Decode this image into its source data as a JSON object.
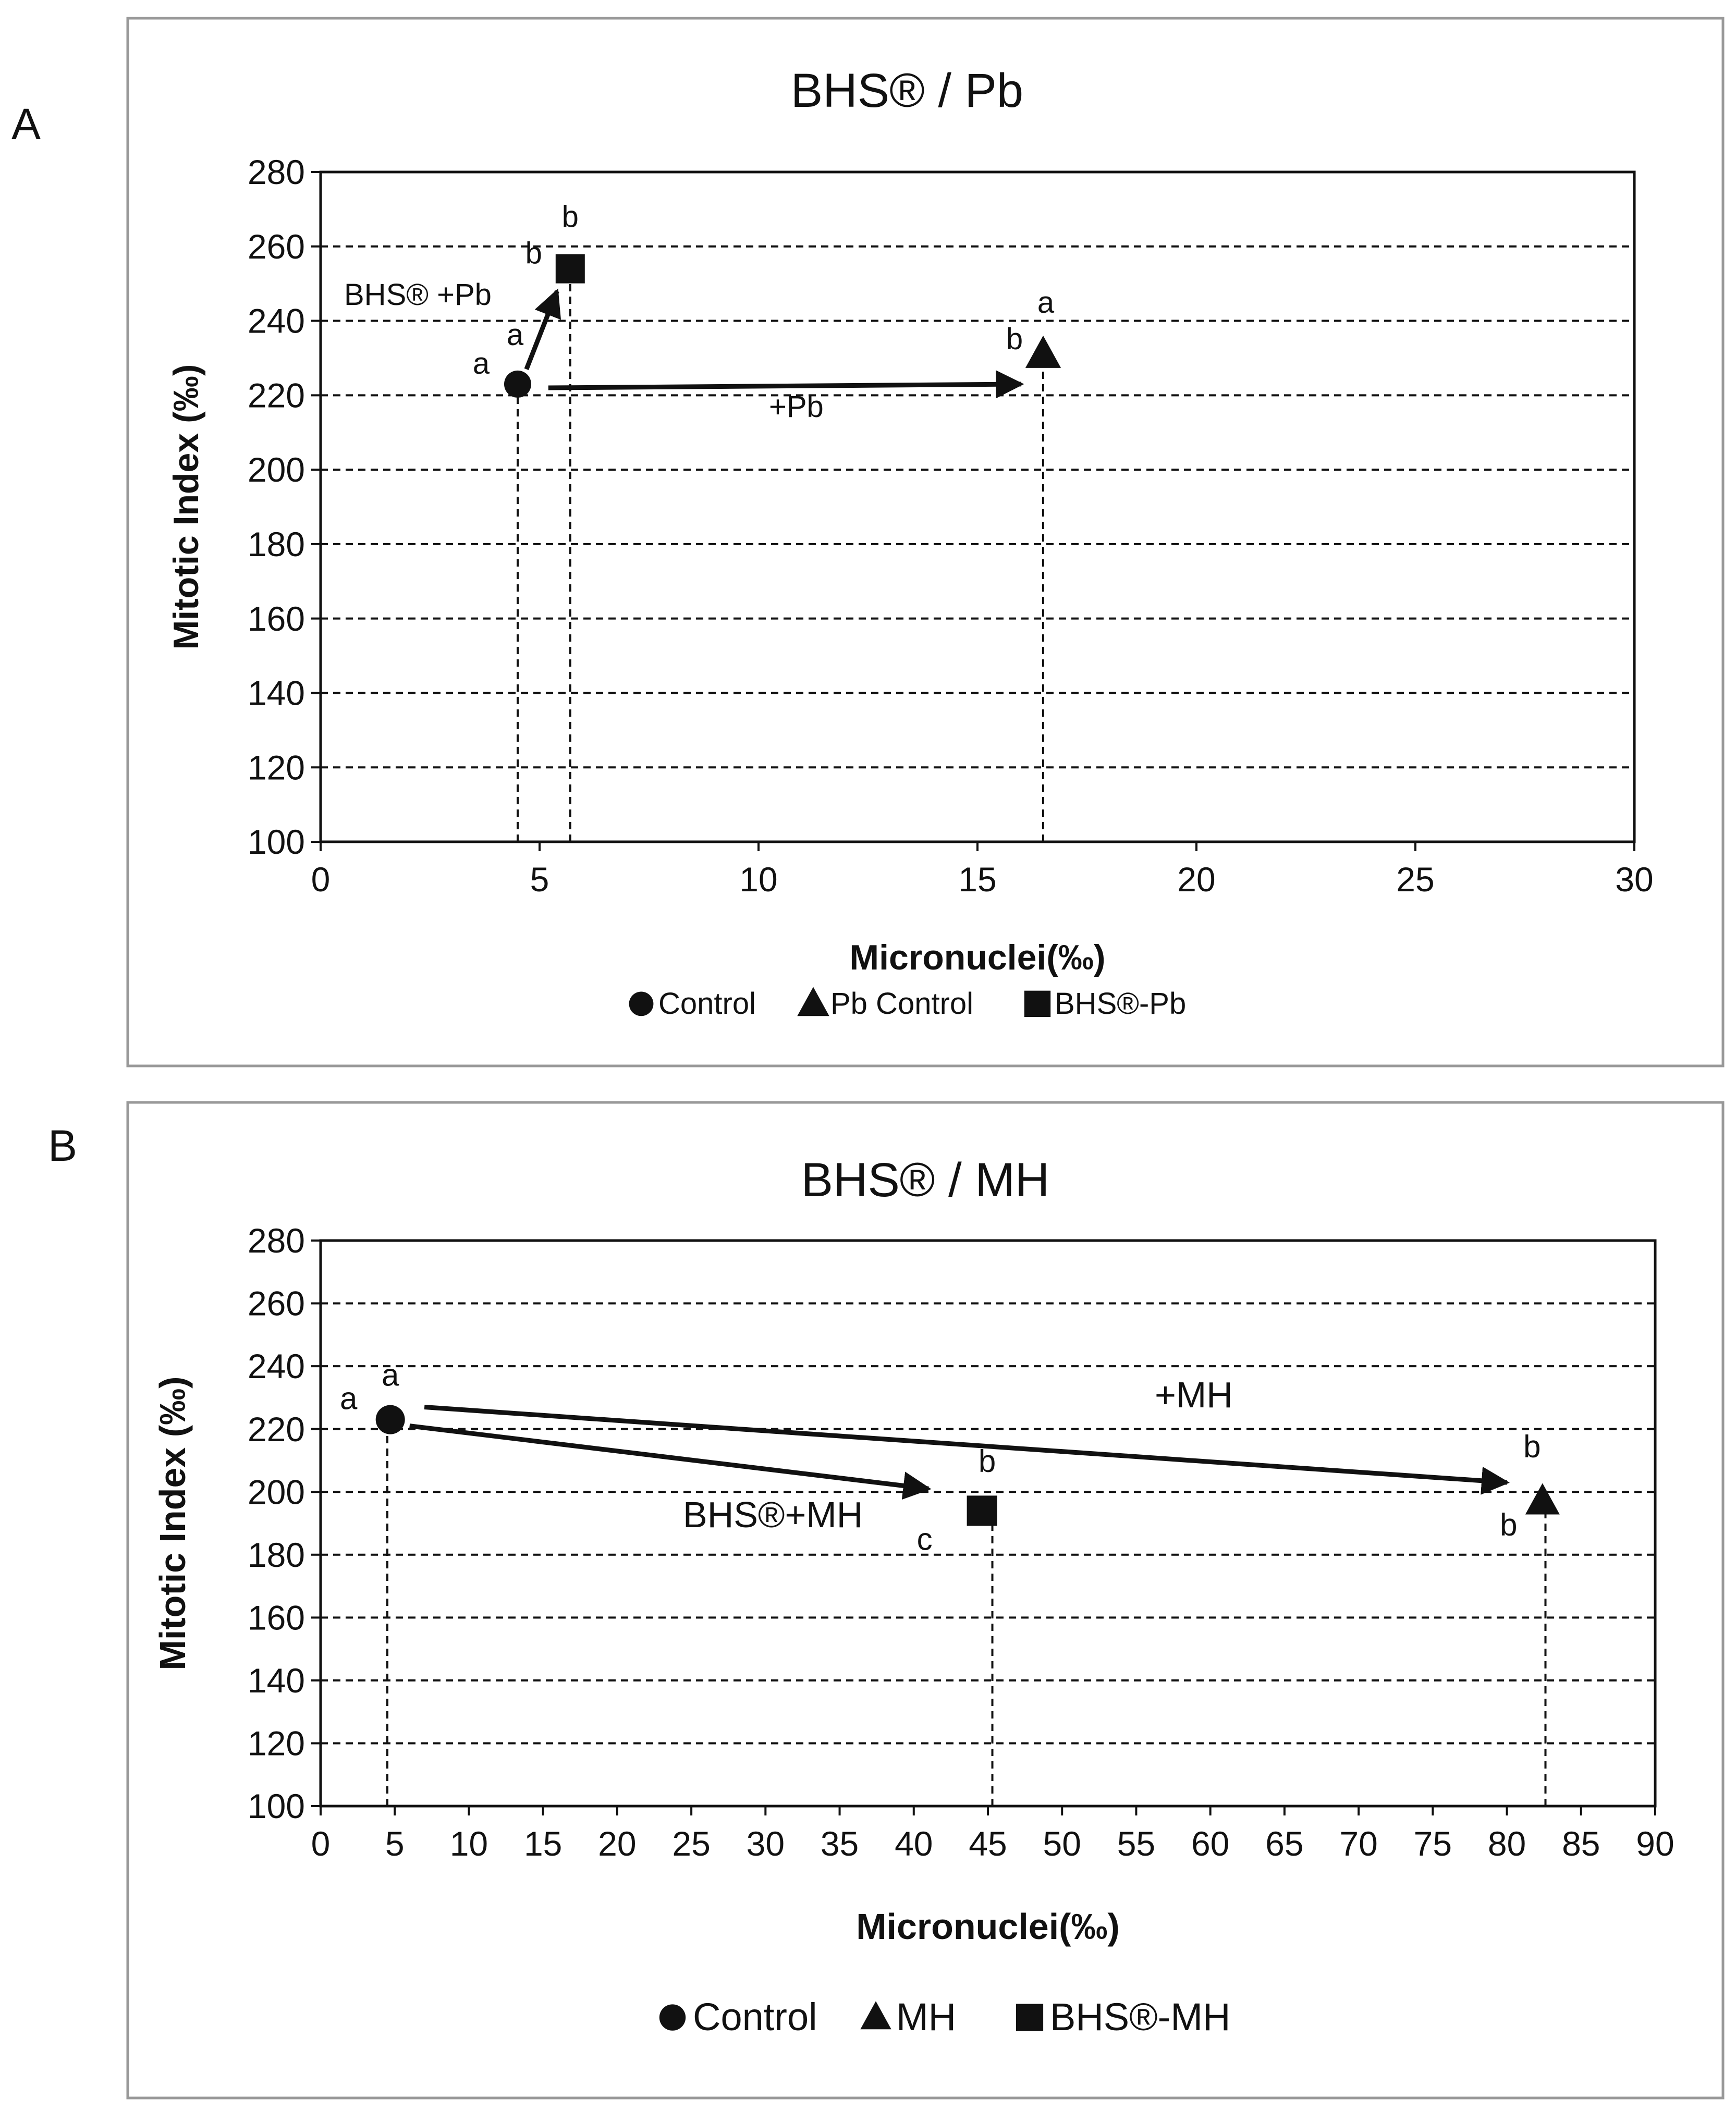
{
  "panels": {
    "a": {
      "letter": "A"
    },
    "b": {
      "letter": "B"
    }
  },
  "chart_data": [
    {
      "type": "scatter",
      "title": "BHS® / Pb",
      "xlabel": "Micronuclei(‰)",
      "ylabel": "Mitotic Index (‰)",
      "xlim": [
        0,
        30
      ],
      "ylim": [
        100,
        280
      ],
      "xticks": [
        0,
        5,
        10,
        15,
        20,
        25,
        30
      ],
      "yticks": [
        100,
        120,
        140,
        160,
        180,
        200,
        220,
        240,
        260,
        280
      ],
      "grid": "horizontal dashed",
      "legend": "bottom-center",
      "series": [
        {
          "name": "Control",
          "marker": "circle",
          "x": 4.5,
          "y": 223,
          "letters": [
            {
              "text": "a",
              "side": "left"
            },
            {
              "text": "a",
              "side": "above-right"
            }
          ]
        },
        {
          "name": "Pb Control",
          "marker": "triangle",
          "x": 16.5,
          "y": 231,
          "letters": [
            {
              "text": "b",
              "side": "left"
            },
            {
              "text": "a",
              "side": "above"
            }
          ]
        },
        {
          "name": "BHS®-Pb",
          "marker": "square",
          "x": 5.7,
          "y": 254,
          "letters": [
            {
              "text": "b",
              "side": "left"
            },
            {
              "text": "b",
              "side": "above"
            }
          ]
        }
      ],
      "arrows": [
        {
          "label": "BHS® +Pb",
          "from": [
            4.7,
            227
          ],
          "to": [
            5.4,
            248
          ]
        },
        {
          "label": "+Pb",
          "from": [
            5.2,
            222
          ],
          "to": [
            16.0,
            223
          ]
        }
      ],
      "drop_lines_x": [
        4.5,
        5.7,
        16.5
      ]
    },
    {
      "type": "scatter",
      "title": "BHS® / MH",
      "xlabel": "Micronuclei(‰)",
      "ylabel": "Mitotic Index (‰)",
      "xlim": [
        0,
        90
      ],
      "ylim": [
        100,
        280
      ],
      "xticks": [
        0,
        5,
        10,
        15,
        20,
        25,
        30,
        35,
        40,
        45,
        50,
        55,
        60,
        65,
        70,
        75,
        80,
        85,
        90
      ],
      "yticks": [
        100,
        120,
        140,
        160,
        180,
        200,
        220,
        240,
        260,
        280
      ],
      "grid": "horizontal dashed",
      "legend": "bottom-center",
      "series": [
        {
          "name": "Control",
          "marker": "circle",
          "x": 4.7,
          "y": 223,
          "letters": [
            {
              "text": "a",
              "side": "left"
            },
            {
              "text": "a",
              "side": "above"
            }
          ]
        },
        {
          "name": "MH",
          "marker": "triangle",
          "x": 82.4,
          "y": 197,
          "letters": [
            {
              "text": "b",
              "side": "above"
            },
            {
              "text": "b",
              "side": "below-left"
            }
          ]
        },
        {
          "name": "BHS®-MH",
          "marker": "square",
          "x": 44.6,
          "y": 194,
          "letters": [
            {
              "text": "b",
              "side": "above"
            },
            {
              "text": "c",
              "side": "below-left"
            }
          ]
        }
      ],
      "arrows": [
        {
          "label": "+MH",
          "from": [
            7,
            227
          ],
          "to": [
            80,
            203
          ]
        },
        {
          "label": "BHS®+MH",
          "from": [
            6,
            221
          ],
          "to": [
            41,
            201
          ]
        }
      ],
      "drop_lines_x": [
        4.5,
        45.3,
        82.6
      ]
    }
  ]
}
